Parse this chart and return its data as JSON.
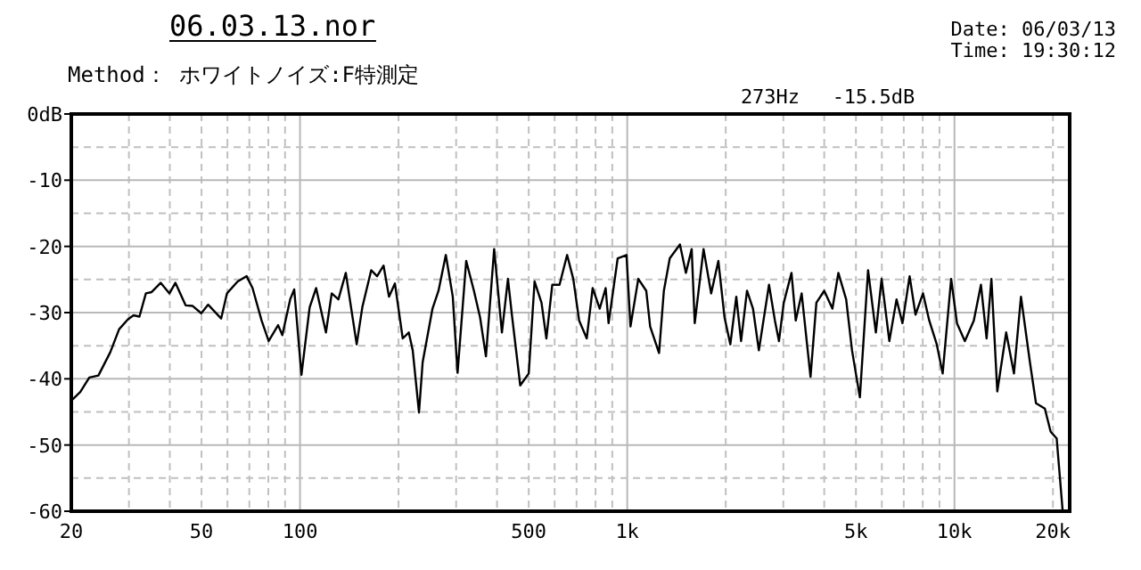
{
  "chart_data": {
    "type": "line",
    "title": "06.03.13.nor",
    "subtitle": "Method： ホワイトノイズ:F特測定",
    "annotations": [
      "Date: 06/03/13",
      "Time: 19:30:12",
      "273Hz",
      "-15.5dB"
    ],
    "log": "x",
    "grid": true,
    "marker": "none",
    "xlim": [
      20,
      22500
    ],
    "ylim": [
      -60,
      0
    ],
    "xticks": [
      20,
      {
        "value": 30,
        "label": null
      },
      {
        "value": 40,
        "label": null
      },
      50,
      {
        "value": 60,
        "label": null
      },
      {
        "value": 70,
        "label": null
      },
      {
        "value": 80,
        "label": null
      },
      {
        "value": 90,
        "label": null
      },
      100,
      {
        "value": 200,
        "label": null
      },
      {
        "value": 300,
        "label": null
      },
      {
        "value": 400,
        "label": null
      },
      500,
      {
        "value": 600,
        "label": null
      },
      {
        "value": 700,
        "label": null
      },
      {
        "value": 800,
        "label": null
      },
      {
        "value": 900,
        "label": null
      },
      {
        "value": 1000,
        "label": "1k"
      },
      {
        "value": 2000,
        "label": null
      },
      {
        "value": 3000,
        "label": null
      },
      {
        "value": 4000,
        "label": null
      },
      {
        "value": 5000,
        "label": "5k"
      },
      {
        "value": 6000,
        "label": null
      },
      {
        "value": 7000,
        "label": null
      },
      {
        "value": 8000,
        "label": null
      },
      {
        "value": 9000,
        "label": null
      },
      {
        "value": 10000,
        "label": "10k"
      },
      {
        "value": 20000,
        "label": "20k"
      }
    ],
    "yticks": [
      {
        "value": 0,
        "label": "0dB"
      },
      {
        "value": -5,
        "label": null
      },
      -10,
      {
        "value": -15,
        "label": null
      },
      -20,
      {
        "value": -25,
        "label": null
      },
      -30,
      {
        "value": -35,
        "label": null
      },
      -40,
      {
        "value": -45,
        "label": null
      },
      -50,
      {
        "value": -55,
        "label": null
      },
      -60
    ],
    "x": [
      20.0,
      21.3,
      22.7,
      24.2,
      26.3,
      28.0,
      29.8,
      31.0,
      32.3,
      33.8,
      35.2,
      37.5,
      39.9,
      41.6,
      44.7,
      47.0,
      49.9,
      52.4,
      57.4,
      59.8,
      64.5,
      68.7,
      71.6,
      76.3,
      80.2,
      85.7,
      88.3,
      93.3,
      96.0,
      101,
      107,
      112,
      120,
      125,
      131,
      138,
      149,
      155,
      165,
      172,
      180,
      187,
      195,
      206,
      215,
      221,
      231,
      237,
      254,
      265,
      279,
      293,
      303,
      322,
      340,
      355,
      370,
      392,
      414,
      432,
      444,
      471,
      500,
      521,
      547,
      566,
      590,
      621,
      655,
      684,
      713,
      752,
      784,
      824,
      859,
      877,
      935,
      995,
      1023,
      1081,
      1143,
      1175,
      1251,
      1294,
      1349,
      1449,
      1511,
      1574,
      1608,
      1711,
      1805,
      1899,
      1983,
      2066,
      2154,
      2228,
      2323,
      2423,
      2525,
      2712,
      2827,
      2909,
      3009,
      3177,
      3273,
      3412,
      3632,
      3785,
      4000,
      4237,
      4418,
      4667,
      4864,
      5140,
      5445,
      5752,
      5990,
      6324,
      6653,
      6936,
      7295,
      7603,
      8017,
      8375,
      8831,
      9204,
      9772,
      10180,
      10760,
      11460,
      12050,
      12540,
      12970,
      13520,
      14390,
      15200,
      15970,
      17010,
      17750,
      18890,
      19680,
      20530,
      21420
    ],
    "series": [
      {
        "color": "#000000",
        "values": [
          -43.3,
          -42,
          -39.8,
          -39.5,
          -36,
          -32.5,
          -31,
          -30.4,
          -30.6,
          -27.1,
          -26.9,
          -25.5,
          -27.1,
          -25.5,
          -28.9,
          -29,
          -30.1,
          -28.8,
          -30.9,
          -27.1,
          -25.3,
          -24.5,
          -26.3,
          -31.2,
          -34.3,
          -31.9,
          -33.4,
          -28,
          -26.5,
          -39.4,
          -29.2,
          -26.3,
          -33,
          -27.1,
          -28,
          -24,
          -34.8,
          -29.2,
          -23.6,
          -24.5,
          -22.9,
          -27.6,
          -25.6,
          -33.9,
          -33,
          -35.7,
          -45.1,
          -37.5,
          -29.4,
          -26.7,
          -21.3,
          -27.6,
          -39.1,
          -22.2,
          -26.7,
          -30.7,
          -36.6,
          -20.4,
          -33,
          -24.9,
          -30.3,
          -41,
          -39.2,
          -25.3,
          -28.5,
          -33.9,
          -25.8,
          -25.8,
          -21.3,
          -24.9,
          -31.2,
          -33.9,
          -26.3,
          -29.4,
          -26.3,
          -31.6,
          -21.8,
          -21.3,
          -32.1,
          -24.9,
          -26.7,
          -32.1,
          -36.1,
          -26.7,
          -21.8,
          -19.7,
          -24,
          -20.4,
          -31.6,
          -20.4,
          -27.1,
          -22.2,
          -30.7,
          -34.8,
          -27.6,
          -34.3,
          -26.7,
          -29.4,
          -35.7,
          -25.8,
          -31.2,
          -34.3,
          -28.5,
          -24,
          -31.2,
          -27.1,
          -39.7,
          -28.5,
          -26.7,
          -29.4,
          -24,
          -28,
          -35.7,
          -42.8,
          -23.6,
          -33,
          -24.9,
          -34.3,
          -28,
          -31.6,
          -24.5,
          -30.3,
          -27.1,
          -31.2,
          -34.8,
          -39.2,
          -24.9,
          -31.6,
          -34.3,
          -31.2,
          -25.8,
          -33.9,
          -24.9,
          -41.9,
          -33,
          -39.2,
          -27.6,
          -37.5,
          -43.7,
          -44.5,
          -48,
          -49,
          -60
        ]
      }
    ]
  }
}
